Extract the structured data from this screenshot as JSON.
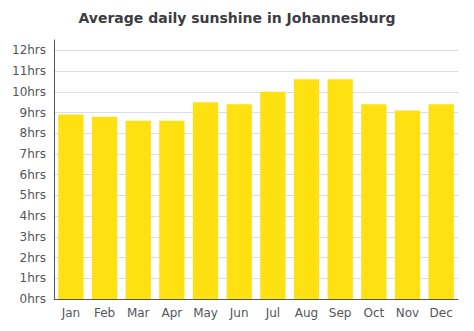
{
  "chart_data": {
    "type": "bar",
    "title": "Average daily sunshine in Johannesburg",
    "categories": [
      "Jan",
      "Feb",
      "Mar",
      "Apr",
      "May",
      "Jun",
      "Jul",
      "Aug",
      "Sep",
      "Oct",
      "Nov",
      "Dec"
    ],
    "values": [
      8.9,
      8.8,
      8.6,
      8.6,
      9.5,
      9.4,
      10.0,
      10.6,
      10.6,
      9.4,
      9.1,
      9.4
    ],
    "color": "#FFE010",
    "ylim": [
      0,
      12.5
    ],
    "yticks": [
      {
        "value": 0,
        "label": "0hrs"
      },
      {
        "value": 1,
        "label": "1hrs"
      },
      {
        "value": 2,
        "label": "2hrs"
      },
      {
        "value": 3,
        "label": "3hrs"
      },
      {
        "value": 4,
        "label": "4hrs"
      },
      {
        "value": 5,
        "label": "5hrs"
      },
      {
        "value": 6,
        "label": "6hrs"
      },
      {
        "value": 7,
        "label": "7hrs"
      },
      {
        "value": 8,
        "label": "8hrs"
      },
      {
        "value": 9,
        "label": "9hrs"
      },
      {
        "value": 10,
        "label": "10hrs"
      },
      {
        "value": 11,
        "label": "11hrs"
      },
      {
        "value": 12,
        "label": "12hrs"
      }
    ],
    "grid": true
  }
}
